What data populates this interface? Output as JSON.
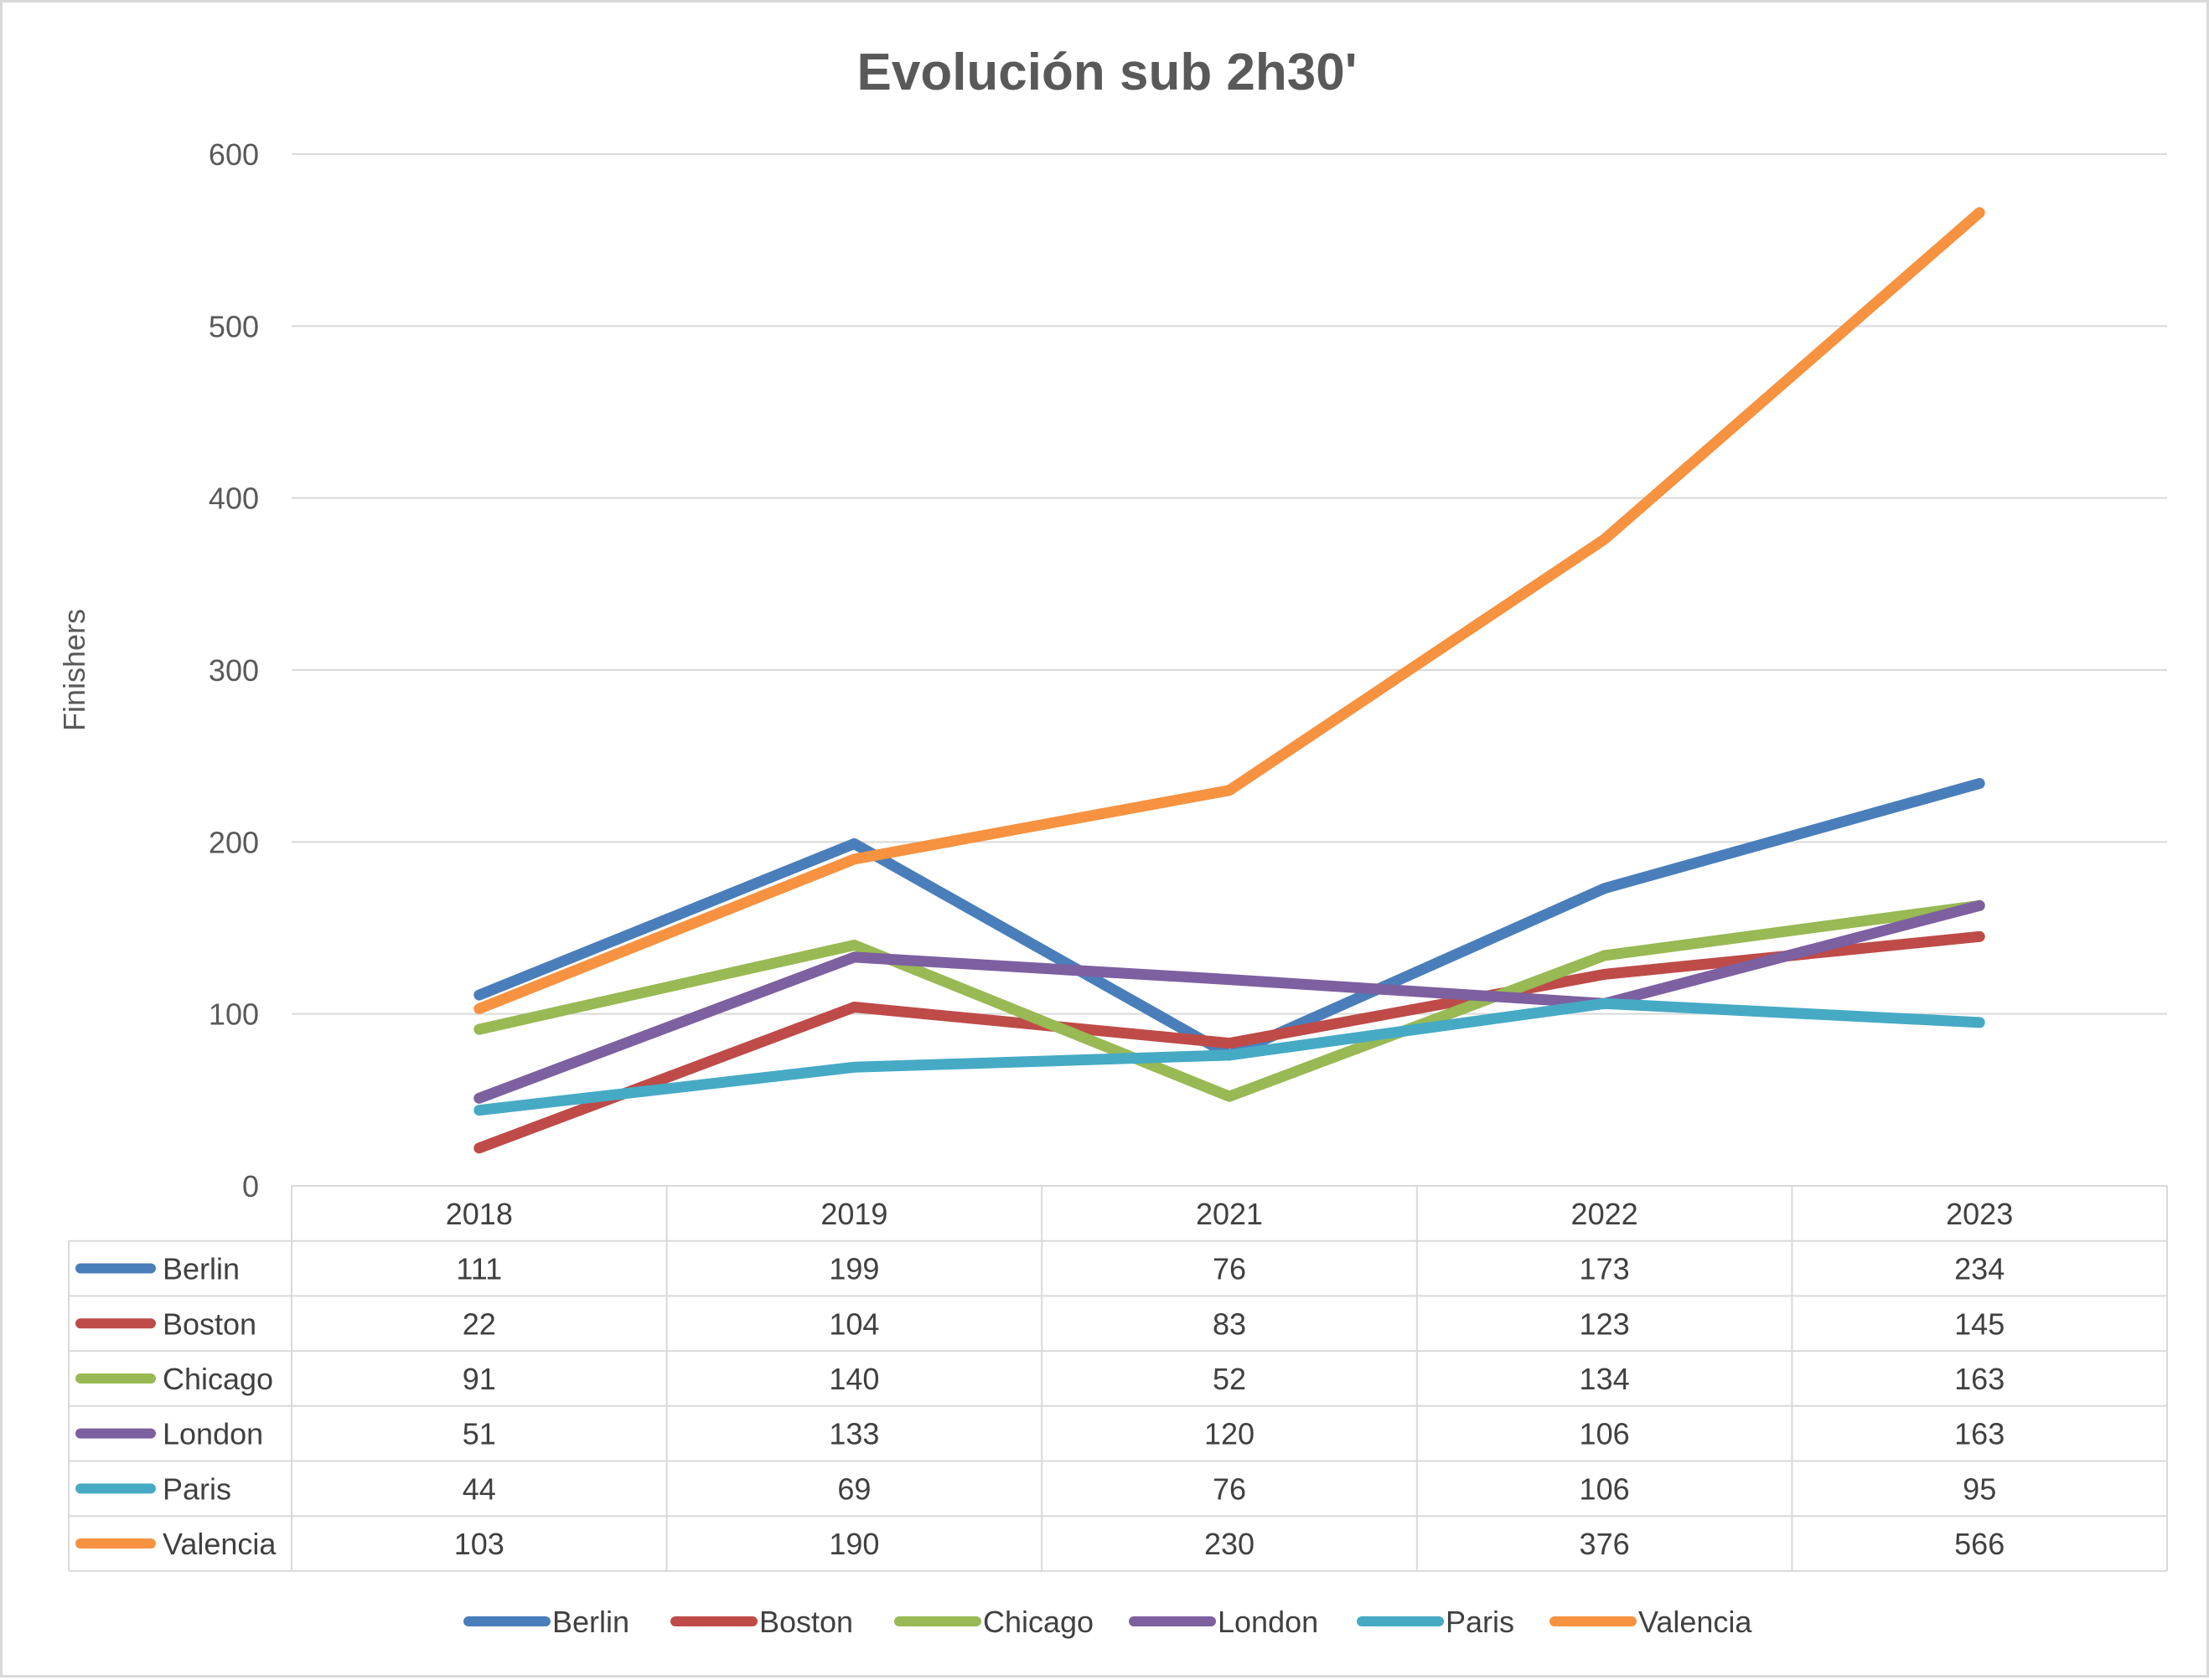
{
  "chart_data": {
    "type": "line",
    "title": "Evolución sub 2h30'",
    "xlabel": "",
    "ylabel": "Finishers",
    "categories": [
      "2018",
      "2019",
      "2021",
      "2022",
      "2023"
    ],
    "ylim": [
      0,
      600
    ],
    "y_ticks": [
      0,
      100,
      200,
      300,
      400,
      500,
      600
    ],
    "grid": true,
    "legend_position": "bottom",
    "data_table": true,
    "series": [
      {
        "name": "Berlin",
        "color": "#4a7ebb",
        "values": [
          111,
          199,
          76,
          173,
          234
        ]
      },
      {
        "name": "Boston",
        "color": "#be4b48",
        "values": [
          22,
          104,
          83,
          123,
          145
        ]
      },
      {
        "name": "Chicago",
        "color": "#98b954",
        "values": [
          91,
          140,
          52,
          134,
          163
        ]
      },
      {
        "name": "London",
        "color": "#7d60a0",
        "values": [
          51,
          133,
          120,
          106,
          163
        ]
      },
      {
        "name": "Paris",
        "color": "#46aac5",
        "values": [
          44,
          69,
          76,
          106,
          95
        ]
      },
      {
        "name": "Valencia",
        "color": "#f69240",
        "values": [
          103,
          190,
          230,
          376,
          566
        ]
      }
    ]
  }
}
